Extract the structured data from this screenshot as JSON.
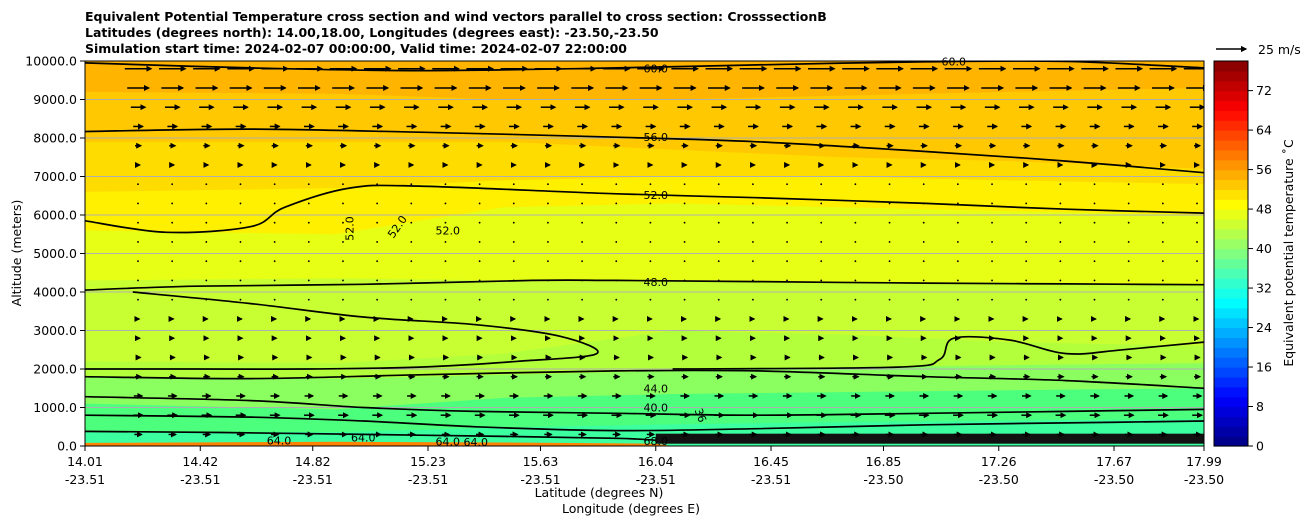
{
  "chart_data": {
    "type": "heatmap",
    "title_lines": [
      "Equivalent Potential Temperature cross section and wind vectors parallel to cross section: CrosssectionB",
      "Latitudes (degrees north): 14.00,18.00, Longitudes (degrees east): -23.50,-23.50",
      "Simulation start time: 2024-02-07 00:00:00, Valid time: 2024-02-07 22:00:00"
    ],
    "xlabel": "Latitude (degrees N)",
    "xlabel2": "Longitude (degrees E)",
    "ylabel": "Altitude (meters)",
    "x_ticks": [
      {
        "lat": "14.01",
        "lon": "-23.51",
        "v": 14.01
      },
      {
        "lat": "14.42",
        "lon": "-23.51",
        "v": 14.42
      },
      {
        "lat": "14.82",
        "lon": "-23.51",
        "v": 14.82
      },
      {
        "lat": "15.23",
        "lon": "-23.51",
        "v": 15.23
      },
      {
        "lat": "15.63",
        "lon": "-23.51",
        "v": 15.63
      },
      {
        "lat": "16.04",
        "lon": "-23.51",
        "v": 16.04
      },
      {
        "lat": "16.45",
        "lon": "-23.51",
        "v": 16.45
      },
      {
        "lat": "16.85",
        "lon": "-23.50",
        "v": 16.85
      },
      {
        "lat": "17.26",
        "lon": "-23.50",
        "v": 17.26
      },
      {
        "lat": "17.67",
        "lon": "-23.50",
        "v": 17.67
      },
      {
        "lat": "17.99",
        "lon": "-23.50",
        "v": 17.99
      }
    ],
    "xlim": [
      14.01,
      17.99
    ],
    "y_ticks": [
      "0.0",
      "1000.0",
      "2000.0",
      "3000.0",
      "4000.0",
      "5000.0",
      "6000.0",
      "7000.0",
      "8000.0",
      "9000.0",
      "10000.0"
    ],
    "ylim": [
      0,
      10000
    ],
    "colorbar": {
      "label": "Equivalent potential temperature $^\\circ$C",
      "label_text": "Equivalent potential temperature ˚C",
      "ticks": [
        "0",
        "8",
        "16",
        "24",
        "32",
        "40",
        "48",
        "56",
        "64",
        "72"
      ],
      "range": [
        0,
        78
      ]
    },
    "bands": [
      {
        "level": 38,
        "color": "#4cff7d",
        "profile": [
          [
            14.01,
            380
          ],
          [
            14.9,
            360
          ],
          [
            15.5,
            480
          ],
          [
            16.1,
            560
          ],
          [
            16.7,
            620
          ],
          [
            17.3,
            660
          ],
          [
            17.99,
            700
          ]
        ]
      },
      {
        "level": 42,
        "color": "#8cff60",
        "profile": [
          [
            14.01,
            1100
          ],
          [
            14.9,
            950
          ],
          [
            15.5,
            1250
          ],
          [
            16.1,
            1350
          ],
          [
            16.7,
            1400
          ],
          [
            17.3,
            1450
          ],
          [
            17.99,
            1500
          ]
        ]
      },
      {
        "level": 44,
        "color": "#b4ff3c",
        "profile": [
          [
            14.01,
            1800
          ],
          [
            14.9,
            1750
          ],
          [
            15.5,
            1850
          ],
          [
            16.1,
            1950
          ],
          [
            16.7,
            2050
          ],
          [
            17.3,
            2100
          ],
          [
            17.99,
            2150
          ]
        ]
      },
      {
        "level": 46,
        "color": "#c8ff32",
        "profile": [
          [
            14.01,
            2200
          ],
          [
            14.9,
            2150
          ],
          [
            15.5,
            2400
          ],
          [
            16.1,
            3000
          ],
          [
            16.7,
            2900
          ],
          [
            17.3,
            2700
          ],
          [
            17.99,
            2600
          ]
        ]
      },
      {
        "level": 48,
        "color": "#e6ff14",
        "profile": [
          [
            14.01,
            4300
          ],
          [
            14.9,
            4350
          ],
          [
            15.5,
            4300
          ],
          [
            16.1,
            4300
          ],
          [
            16.7,
            4250
          ],
          [
            17.3,
            4250
          ],
          [
            17.99,
            4200
          ]
        ]
      },
      {
        "level": 50,
        "color": "#fff000",
        "profile": [
          [
            14.01,
            5600
          ],
          [
            14.9,
            5500
          ],
          [
            15.5,
            6200
          ],
          [
            16.1,
            6300
          ],
          [
            16.7,
            6200
          ],
          [
            17.3,
            6100
          ],
          [
            17.99,
            6000
          ]
        ]
      },
      {
        "level": 52,
        "color": "#ffdc00",
        "profile": [
          [
            14.01,
            6600
          ],
          [
            14.9,
            6700
          ],
          [
            15.5,
            6900
          ],
          [
            16.1,
            7000
          ],
          [
            16.7,
            7000
          ],
          [
            17.3,
            6900
          ],
          [
            17.99,
            6800
          ]
        ]
      },
      {
        "level": 54,
        "color": "#ffc800",
        "profile": [
          [
            14.01,
            7900
          ],
          [
            14.9,
            7900
          ],
          [
            15.5,
            7900
          ],
          [
            16.1,
            7700
          ],
          [
            16.7,
            7500
          ],
          [
            17.3,
            7400
          ],
          [
            17.99,
            7200
          ]
        ]
      },
      {
        "level": 56,
        "color": "#ffb400",
        "profile": [
          [
            14.01,
            9200
          ],
          [
            14.9,
            9150
          ],
          [
            15.5,
            9000
          ],
          [
            16.1,
            9000
          ],
          [
            16.7,
            9100
          ],
          [
            17.3,
            9200
          ],
          [
            17.99,
            9300
          ]
        ]
      },
      {
        "level": 58,
        "color": "#ff9600",
        "profile": [
          [
            14.01,
            10000
          ],
          [
            17.99,
            10000
          ]
        ]
      }
    ],
    "surface": [
      {
        "color": "#ff8200",
        "profile": [
          [
            14.01,
            80
          ],
          [
            14.9,
            110
          ],
          [
            15.5,
            90
          ],
          [
            16.04,
            60
          ],
          [
            16.1,
            0
          ],
          [
            17.99,
            0
          ]
        ]
      },
      {
        "color": "#ff4a00",
        "profile": [
          [
            14.01,
            0
          ],
          [
            17.99,
            0
          ]
        ]
      }
    ],
    "contours": [
      {
        "level": "60.0",
        "points": [
          [
            14.01,
            9950
          ],
          [
            14.6,
            9820
          ],
          [
            15.2,
            9750
          ],
          [
            15.9,
            9820
          ],
          [
            16.4,
            9900
          ],
          [
            17.0,
            9980
          ],
          [
            17.5,
            9990
          ],
          [
            17.99,
            9820
          ]
        ]
      },
      {
        "level": "56.0",
        "points": [
          [
            14.01,
            8170
          ],
          [
            14.6,
            8230
          ],
          [
            15.2,
            8150
          ],
          [
            15.9,
            8020
          ],
          [
            16.4,
            7900
          ],
          [
            17.0,
            7650
          ],
          [
            17.5,
            7400
          ],
          [
            17.99,
            7100
          ]
        ]
      },
      {
        "level": "52.0",
        "points": [
          [
            14.01,
            5850
          ],
          [
            14.3,
            5550
          ],
          [
            14.6,
            5700
          ],
          [
            14.72,
            6200
          ],
          [
            14.95,
            6700
          ],
          [
            15.2,
            6750
          ],
          [
            15.9,
            6550
          ],
          [
            16.4,
            6450
          ],
          [
            17.0,
            6300
          ],
          [
            17.5,
            6150
          ],
          [
            17.99,
            6050
          ]
        ]
      },
      {
        "level": "48.0",
        "points": [
          [
            14.01,
            4050
          ],
          [
            14.4,
            4150
          ],
          [
            15.0,
            4200
          ],
          [
            15.6,
            4300
          ],
          [
            15.9,
            4300
          ],
          [
            16.4,
            4270
          ],
          [
            17.0,
            4230
          ],
          [
            17.5,
            4210
          ],
          [
            17.99,
            4190
          ]
        ]
      },
      {
        "level": "46.0",
        "points": [
          [
            14.18,
            4000
          ],
          [
            14.6,
            3700
          ],
          [
            15.0,
            3350
          ],
          [
            15.4,
            3150
          ],
          [
            15.7,
            2850
          ],
          [
            15.83,
            2400
          ],
          [
            15.55,
            2200
          ],
          [
            15.2,
            2050
          ],
          [
            14.8,
            2000
          ],
          [
            14.4,
            2000
          ],
          [
            14.01,
            2000
          ]
        ]
      },
      {
        "level": "46.0",
        "points": [
          [
            16.1,
            2000
          ],
          [
            16.9,
            2050
          ],
          [
            17.05,
            2250
          ],
          [
            17.1,
            2800
          ],
          [
            17.3,
            2750
          ],
          [
            17.5,
            2400
          ],
          [
            17.7,
            2500
          ],
          [
            17.99,
            2700
          ]
        ]
      },
      {
        "level": "44.0",
        "points": [
          [
            14.01,
            1800
          ],
          [
            14.6,
            1750
          ],
          [
            15.2,
            1850
          ],
          [
            15.9,
            1950
          ],
          [
            16.4,
            1950
          ],
          [
            17.0,
            1800
          ],
          [
            17.5,
            1700
          ],
          [
            17.99,
            1500
          ]
        ]
      },
      {
        "level": "40.0",
        "points": [
          [
            14.01,
            1280
          ],
          [
            14.6,
            1180
          ],
          [
            15.0,
            1000
          ],
          [
            15.4,
            900
          ],
          [
            15.9,
            850
          ],
          [
            16.4,
            800
          ],
          [
            17.0,
            850
          ],
          [
            17.5,
            900
          ],
          [
            17.99,
            950
          ]
        ]
      },
      {
        "level": "36.0",
        "points": [
          [
            14.01,
            800
          ],
          [
            14.6,
            750
          ],
          [
            15.0,
            650
          ],
          [
            15.4,
            500
          ],
          [
            15.9,
            400
          ],
          [
            16.4,
            450
          ],
          [
            17.0,
            550
          ],
          [
            17.5,
            600
          ],
          [
            17.99,
            650
          ]
        ]
      },
      {
        "level": "64.0",
        "points": [
          [
            14.01,
            380
          ],
          [
            14.5,
            350
          ],
          [
            15.0,
            300
          ],
          [
            15.5,
            250
          ],
          [
            15.9,
            200
          ],
          [
            16.04,
            150
          ]
        ]
      }
    ],
    "contour_labels": [
      {
        "text": "60.0",
        "x": 16.04,
        "y": 9800,
        "rot": 0
      },
      {
        "text": "60.0",
        "x": 17.1,
        "y": 9990,
        "rot": 0
      },
      {
        "text": "56.0",
        "x": 16.04,
        "y": 8030,
        "rot": 0
      },
      {
        "text": "52.0",
        "x": 16.04,
        "y": 6520,
        "rot": 0
      },
      {
        "text": "52.0",
        "x": 14.95,
        "y": 5650,
        "rot": -90
      },
      {
        "text": "52.0",
        "x": 15.12,
        "y": 5700,
        "rot": -55
      },
      {
        "text": "52.0",
        "x": 15.3,
        "y": 5600,
        "rot": 0
      },
      {
        "text": "48.0",
        "x": 16.04,
        "y": 4260,
        "rot": 0
      },
      {
        "text": "44.0",
        "x": 16.04,
        "y": 1500,
        "rot": 0
      },
      {
        "text": "40.0",
        "x": 16.04,
        "y": 1000,
        "rot": 0
      },
      {
        "text": "36",
        "x": 16.2,
        "y": 800,
        "rot": 70
      },
      {
        "text": "64.0",
        "x": 15.0,
        "y": 220,
        "rot": 0
      },
      {
        "text": "64.0",
        "x": 15.3,
        "y": 120,
        "rot": 0
      },
      {
        "text": "64.0",
        "x": 14.7,
        "y": 140,
        "rot": 0
      },
      {
        "text": "64.0",
        "x": 15.4,
        "y": 110,
        "rot": 0
      },
      {
        "text": "68.0",
        "x": 16.04,
        "y": 130,
        "rot": 0
      }
    ],
    "vector_key": "25 m/s",
    "wind_levels": [
      {
        "y": 9800,
        "speed": 22
      },
      {
        "y": 9300,
        "speed": 18
      },
      {
        "y": 8800,
        "speed": 12
      },
      {
        "y": 8300,
        "speed": 8
      },
      {
        "y": 7800,
        "speed": 5
      },
      {
        "y": 7300,
        "speed": 3
      },
      {
        "y": 6800,
        "speed": 1.5
      },
      {
        "y": 6300,
        "speed": 1
      },
      {
        "y": 5800,
        "speed": 0.5
      },
      {
        "y": 5300,
        "speed": 0.5
      },
      {
        "y": 4800,
        "speed": 0.5
      },
      {
        "y": 4300,
        "speed": 1
      },
      {
        "y": 3800,
        "speed": 1.5
      },
      {
        "y": 3300,
        "speed": 2
      },
      {
        "y": 2800,
        "speed": 3
      },
      {
        "y": 2300,
        "speed": 4
      },
      {
        "y": 1800,
        "speed": 5
      },
      {
        "y": 1300,
        "speed": 7
      },
      {
        "y": 800,
        "speed": 8
      },
      {
        "y": 300,
        "speed": 6
      }
    ],
    "wind_columns": 32
  }
}
